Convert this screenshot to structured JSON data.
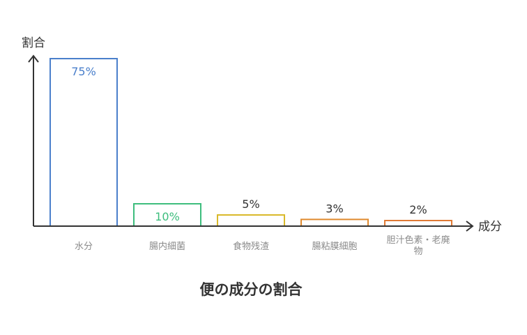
{
  "chart_data": {
    "type": "bar",
    "title": "便の成分の割合",
    "xlabel": "成分",
    "ylabel": "割合",
    "categories": [
      "水分",
      "腸内細菌",
      "食物残渣",
      "腸粘膜細胞",
      "胆汁色素・老廃物"
    ],
    "category_lines": [
      [
        "水分"
      ],
      [
        "腸内細菌"
      ],
      [
        "食物残渣"
      ],
      [
        "腸粘膜細胞"
      ],
      [
        "胆汁色素・老廃",
        "物"
      ]
    ],
    "values": [
      75,
      10,
      5,
      3,
      2
    ],
    "value_labels": [
      "75%",
      "10%",
      "5%",
      "3%",
      "2%"
    ],
    "ylim": [
      0,
      75
    ],
    "grid": false,
    "legend": "none"
  },
  "colors": {
    "bars": [
      "#4a7fcb",
      "#3dbd7d",
      "#d9b92a",
      "#e08a2e",
      "#e07a35"
    ],
    "axis": "#333333",
    "category_text": "#8a8a8a",
    "title_text": "#333333"
  }
}
